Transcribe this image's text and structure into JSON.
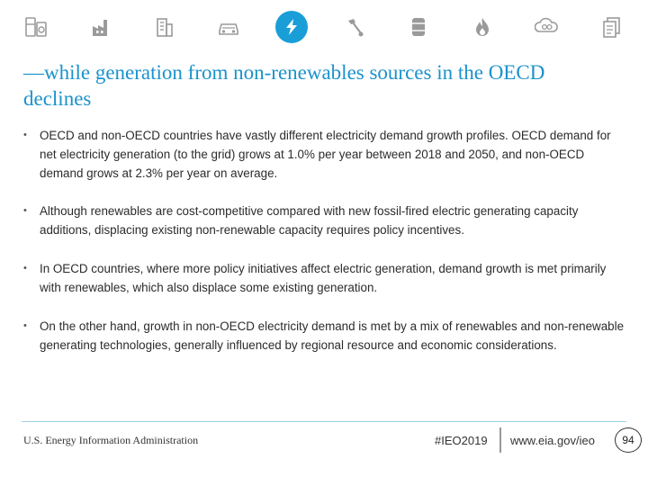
{
  "nav": {
    "accent_color": "#1a9ed8",
    "icon_color": "#9a9a9a",
    "icons": [
      {
        "name": "appliances-icon",
        "active": false
      },
      {
        "name": "industry-icon",
        "active": false
      },
      {
        "name": "buildings-icon",
        "active": false
      },
      {
        "name": "transportation-icon",
        "active": false
      },
      {
        "name": "electricity-icon",
        "active": true
      },
      {
        "name": "coal-icon",
        "active": false
      },
      {
        "name": "oil-barrel-icon",
        "active": false
      },
      {
        "name": "natural-gas-icon",
        "active": false
      },
      {
        "name": "emissions-icon",
        "active": false
      },
      {
        "name": "documents-icon",
        "active": false
      }
    ]
  },
  "slide": {
    "title": "—while generation from non-renewables sources in the OECD declines",
    "bullet_marker": "•",
    "bullets": [
      "OECD and non-OECD countries have vastly different electricity demand growth profiles. OECD demand for net electricity generation (to the grid) grows at 1.0% per year between 2018 and 2050, and non-OECD demand grows at 2.3% per year on average.",
      "Although renewables are cost-competitive compared with new fossil-fired electric generating capacity additions, displacing existing non-renewable capacity requires policy incentives.",
      "In OECD countries, where more policy initiatives affect electric generation, demand growth is met primarily with renewables, which also displace some existing generation.",
      "On the other hand, growth in non-OECD electricity demand is met by a mix of renewables and non-renewable generating technologies, generally influenced by regional resource and economic considerations."
    ]
  },
  "footer": {
    "agency": "U.S. Energy Information Administration",
    "hashtag": "#IEO2019",
    "url": "www.eia.gov/ieo",
    "page_number": "94"
  }
}
